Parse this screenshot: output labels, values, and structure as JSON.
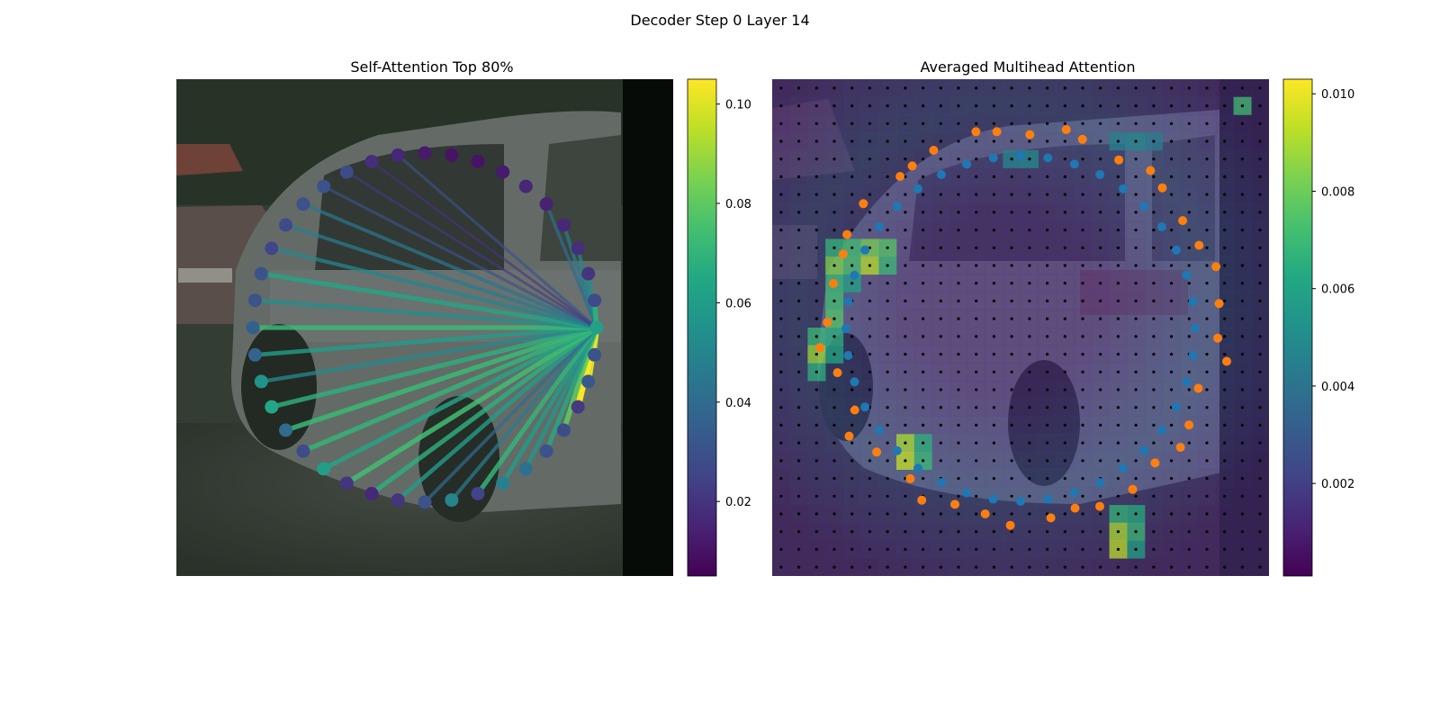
{
  "figure_title": "Decoder Step 0 Layer 14",
  "colors": {
    "colormap": "viridis",
    "query_color": "#1f77b4",
    "prediction_color": "#ff7f0e",
    "grid_dot_color": "#000000",
    "background": "#ffffff"
  },
  "chart_data": [
    {
      "type": "scatter",
      "title": "Self-Attention Top 80%",
      "description_kind": "query points on an ellipse over a camera image, lines from the source query to attended queries colored by attention weight",
      "colorbar": {
        "range": [
          0.005,
          0.105
        ],
        "ticks": [
          "0.02",
          "0.04",
          "0.06",
          "0.08",
          "0.10"
        ]
      },
      "source_query_index": 0,
      "query_weights": [
        0.062,
        0.03,
        0.032,
        0.022,
        0.028,
        0.03,
        0.042,
        0.048,
        0.025,
        0.05,
        0.03,
        0.02,
        0.016,
        0.02,
        0.06,
        0.028,
        0.04,
        0.064,
        0.056,
        0.037,
        0.035,
        0.03,
        0.03,
        0.026,
        0.028,
        0.03,
        0.03,
        0.028,
        0.018,
        0.016,
        0.012,
        0.01,
        0.01,
        0.012,
        0.016,
        0.014,
        0.016,
        0.018,
        0.02,
        0.028
      ],
      "attention_lines": [
        {
          "to": 1,
          "w": 0.078
        },
        {
          "to": 2,
          "w": 0.1
        },
        {
          "to": 3,
          "w": 0.105
        },
        {
          "to": 4,
          "w": 0.08
        },
        {
          "to": 5,
          "w": 0.066
        },
        {
          "to": 6,
          "w": 0.058
        },
        {
          "to": 7,
          "w": 0.06
        },
        {
          "to": 8,
          "w": 0.07
        },
        {
          "to": 9,
          "w": 0.046
        },
        {
          "to": 10,
          "w": 0.04
        },
        {
          "to": 11,
          "w": 0.06
        },
        {
          "to": 12,
          "w": 0.068
        },
        {
          "to": 13,
          "w": 0.074
        },
        {
          "to": 14,
          "w": 0.064
        },
        {
          "to": 15,
          "w": 0.07
        },
        {
          "to": 16,
          "w": 0.072
        },
        {
          "to": 17,
          "w": 0.068
        },
        {
          "to": 18,
          "w": 0.052
        },
        {
          "to": 19,
          "w": 0.06
        },
        {
          "to": 20,
          "w": 0.072
        },
        {
          "to": 21,
          "w": 0.054
        },
        {
          "to": 22,
          "w": 0.064
        },
        {
          "to": 23,
          "w": 0.05
        },
        {
          "to": 24,
          "w": 0.046
        },
        {
          "to": 25,
          "w": 0.044
        },
        {
          "to": 26,
          "w": 0.03
        },
        {
          "to": 27,
          "w": 0.022
        },
        {
          "to": 28,
          "w": 0.02
        },
        {
          "to": 29,
          "w": 0.03
        },
        {
          "to": 35,
          "w": 0.04
        },
        {
          "to": 36,
          "w": 0.046
        },
        {
          "to": 37,
          "w": 0.05
        },
        {
          "to": 38,
          "w": 0.054
        },
        {
          "to": 39,
          "w": 0.07
        }
      ]
    },
    {
      "type": "heatmap",
      "title": "Averaged Multihead Attention",
      "description_kind": "attention heatmap over a camera image with reference grid points, query points (blue) and predicted points (orange)",
      "colorbar": {
        "range": [
          0.0001,
          0.0103
        ],
        "ticks": [
          "0.002",
          "0.004",
          "0.006",
          "0.008",
          "0.010"
        ]
      },
      "grid": {
        "cols": 28,
        "rows": 28
      },
      "hot_cells": [
        {
          "c": 26,
          "r": 1,
          "v": 0.0072
        },
        {
          "c": 3,
          "r": 9,
          "v": 0.0068
        },
        {
          "c": 4,
          "r": 9,
          "v": 0.0072
        },
        {
          "c": 5,
          "r": 9,
          "v": 0.0082
        },
        {
          "c": 6,
          "r": 9,
          "v": 0.0076
        },
        {
          "c": 3,
          "r": 10,
          "v": 0.0084
        },
        {
          "c": 4,
          "r": 10,
          "v": 0.0074
        },
        {
          "c": 5,
          "r": 10,
          "v": 0.0092
        },
        {
          "c": 6,
          "r": 10,
          "v": 0.007
        },
        {
          "c": 3,
          "r": 11,
          "v": 0.007
        },
        {
          "c": 4,
          "r": 11,
          "v": 0.006
        },
        {
          "c": 3,
          "r": 12,
          "v": 0.0072
        },
        {
          "c": 3,
          "r": 13,
          "v": 0.0076
        },
        {
          "c": 2,
          "r": 14,
          "v": 0.007
        },
        {
          "c": 3,
          "r": 14,
          "v": 0.0066
        },
        {
          "c": 2,
          "r": 15,
          "v": 0.0088
        },
        {
          "c": 3,
          "r": 15,
          "v": 0.0062
        },
        {
          "c": 2,
          "r": 16,
          "v": 0.0066
        },
        {
          "c": 7,
          "r": 20,
          "v": 0.009
        },
        {
          "c": 8,
          "r": 20,
          "v": 0.0066
        },
        {
          "c": 7,
          "r": 21,
          "v": 0.0094
        },
        {
          "c": 8,
          "r": 21,
          "v": 0.007
        },
        {
          "c": 19,
          "r": 24,
          "v": 0.0068
        },
        {
          "c": 20,
          "r": 24,
          "v": 0.0064
        },
        {
          "c": 19,
          "r": 25,
          "v": 0.009
        },
        {
          "c": 20,
          "r": 25,
          "v": 0.007
        },
        {
          "c": 19,
          "r": 26,
          "v": 0.0092
        },
        {
          "c": 20,
          "r": 26,
          "v": 0.006
        },
        {
          "c": 13,
          "r": 4,
          "v": 0.0048
        },
        {
          "c": 14,
          "r": 4,
          "v": 0.005
        },
        {
          "c": 19,
          "r": 3,
          "v": 0.0046
        },
        {
          "c": 20,
          "r": 3,
          "v": 0.0048
        },
        {
          "c": 21,
          "r": 3,
          "v": 0.0044
        }
      ]
    }
  ]
}
